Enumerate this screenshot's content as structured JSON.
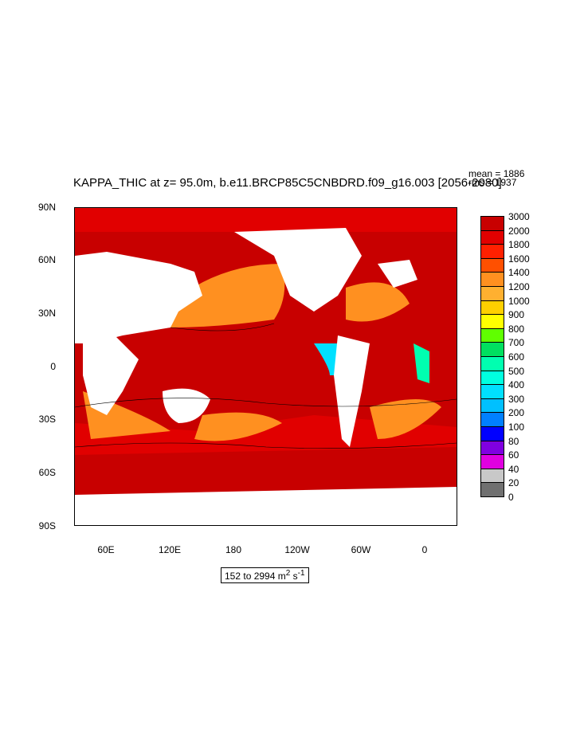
{
  "title": "KAPPA_THIC at z=  95.0m, b.e11.BRCP85C5CNBDRD.f09_g16.003 [2056-2080]",
  "stats": {
    "mean": "mean = 1886",
    "rms": "rms = 1937"
  },
  "range_label": {
    "text": "152 to 2994 m",
    "sup1": "2",
    "mid": " s",
    "sup2": "-1"
  },
  "axes": {
    "y_ticks": [
      "90N",
      "60N",
      "30N",
      "0",
      "30S",
      "60S",
      "90S"
    ],
    "x_ticks": [
      "60E",
      "120E",
      "180",
      "120W",
      "60W",
      "0"
    ]
  },
  "colorbar": {
    "levels": [
      "3000",
      "2000",
      "1800",
      "1600",
      "1400",
      "1200",
      "1000",
      "900",
      "800",
      "700",
      "600",
      "500",
      "400",
      "300",
      "200",
      "100",
      "80",
      "60",
      "40",
      "20",
      "0"
    ],
    "colors": [
      "#c80000",
      "#e10000",
      "#ff2000",
      "#ff5000",
      "#ff9020",
      "#ffb030",
      "#ffd000",
      "#ffff00",
      "#60ff00",
      "#00e060",
      "#00ffb0",
      "#00ffe0",
      "#00e0ff",
      "#00c0ff",
      "#0080ff",
      "#0000ff",
      "#8000e0",
      "#e000e0",
      "#c8c8c8",
      "#707070"
    ]
  },
  "map": {
    "land_color": "#ffffff",
    "ocean_main_color": "#c80000"
  }
}
